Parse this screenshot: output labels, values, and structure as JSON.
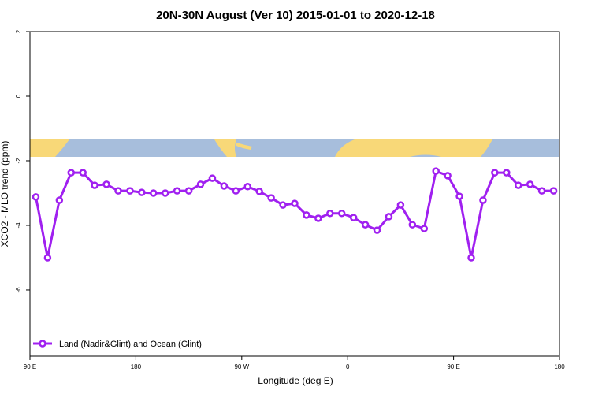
{
  "chart_data": {
    "type": "line",
    "title": "20N-30N August (Ver 10)   2015-01-01 to 2020-12-18",
    "xlabel": "Longitude (deg E)",
    "ylabel": "XCO2 - MLO trend (ppm)",
    "x": [
      95,
      105,
      115,
      125,
      135,
      145,
      155,
      165,
      175,
      185,
      195,
      205,
      215,
      225,
      235,
      245,
      255,
      265,
      275,
      285,
      295,
      305,
      315,
      325,
      335,
      345,
      355,
      365,
      375,
      385,
      395,
      405,
      415,
      425,
      435,
      445,
      455,
      465,
      475,
      485,
      495,
      505,
      515,
      525,
      535
    ],
    "series": [
      {
        "name": "Land (Nadir&Glint) and Ocean (Glint)",
        "color": "#a020f0",
        "values": [
          -3.12,
          -5.0,
          -3.22,
          -2.37,
          -2.37,
          -2.76,
          -2.73,
          -2.93,
          -2.93,
          -2.98,
          -3.0,
          -3.0,
          -2.93,
          -2.93,
          -2.73,
          -2.54,
          -2.78,
          -2.93,
          -2.8,
          -2.95,
          -3.15,
          -3.37,
          -3.32,
          -3.68,
          -3.78,
          -3.63,
          -3.63,
          -3.76,
          -3.98,
          -4.15,
          -3.73,
          -3.37,
          -3.98,
          -4.1,
          -2.32,
          -2.46,
          -3.1,
          -5.0,
          -3.22,
          -2.37,
          -2.37,
          -2.76,
          -2.73,
          -2.93,
          -2.93
        ]
      }
    ],
    "xlim": [
      90,
      540
    ],
    "xticks": [
      {
        "value": 90,
        "label": "90 E"
      },
      {
        "value": 180,
        "label": "180"
      },
      {
        "value": 270,
        "label": "90 W"
      },
      {
        "value": 360,
        "label": "0"
      },
      {
        "value": 450,
        "label": "90 E"
      },
      {
        "value": 540,
        "label": "180"
      }
    ],
    "ylim": [
      -8.05,
      2
    ],
    "yticks": [
      2,
      0,
      -2,
      -4,
      -6
    ],
    "legend": "bottom-left"
  }
}
